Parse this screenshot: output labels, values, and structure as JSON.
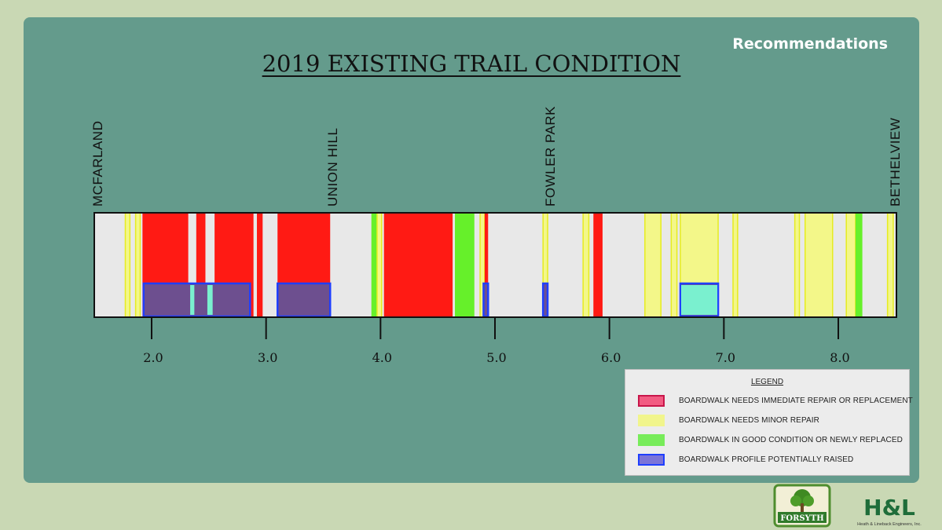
{
  "slide": {
    "section_title": "Recommendations",
    "title": "2019 EXISTING TRAIL CONDITION"
  },
  "chart_data": {
    "type": "strip",
    "x_ticks": [
      "2.0",
      "3.0",
      "4.0",
      "5.0",
      "6.0",
      "7.0",
      "8.0"
    ],
    "tick_values": [
      2.0,
      3.0,
      4.0,
      5.0,
      6.0,
      7.0,
      8.0
    ],
    "xlim": [
      1.5,
      8.5
    ],
    "landmarks": [
      {
        "label": "MCFARLAND",
        "mile": 1.55
      },
      {
        "label": "UNION HILL",
        "mile": 3.6
      },
      {
        "label": "FOWLER PARK",
        "mile": 5.5
      },
      {
        "label": "BETHELVIEW",
        "mile": 8.45
      }
    ],
    "segments": [
      {
        "condition": "minor",
        "start": 1.77,
        "end": 1.81
      },
      {
        "condition": "minor",
        "start": 1.86,
        "end": 1.9
      },
      {
        "condition": "immediate",
        "start": 1.92,
        "end": 2.32
      },
      {
        "condition": "immediate",
        "start": 2.39,
        "end": 2.47
      },
      {
        "condition": "immediate",
        "start": 2.55,
        "end": 2.89
      },
      {
        "condition": "immediate",
        "start": 2.92,
        "end": 2.97
      },
      {
        "condition": "immediate",
        "start": 3.1,
        "end": 3.56
      },
      {
        "condition": "good",
        "start": 3.92,
        "end": 3.97
      },
      {
        "condition": "minor",
        "start": 3.97,
        "end": 4.01
      },
      {
        "condition": "immediate",
        "start": 4.03,
        "end": 4.63
      },
      {
        "condition": "good",
        "start": 4.65,
        "end": 4.82
      },
      {
        "condition": "minor",
        "start": 4.87,
        "end": 4.91
      },
      {
        "condition": "immediate",
        "start": 4.91,
        "end": 4.94
      },
      {
        "condition": "minor",
        "start": 5.42,
        "end": 5.46
      },
      {
        "condition": "minor",
        "start": 5.77,
        "end": 5.82
      },
      {
        "condition": "immediate",
        "start": 5.86,
        "end": 5.94
      },
      {
        "condition": "minor",
        "start": 6.31,
        "end": 6.45
      },
      {
        "condition": "minor",
        "start": 6.54,
        "end": 6.59
      },
      {
        "condition": "minor",
        "start": 6.62,
        "end": 6.95
      },
      {
        "condition": "minor",
        "start": 7.08,
        "end": 7.12
      },
      {
        "condition": "minor",
        "start": 7.62,
        "end": 7.66
      },
      {
        "condition": "minor",
        "start": 7.71,
        "end": 7.95
      },
      {
        "condition": "minor",
        "start": 8.07,
        "end": 8.15
      },
      {
        "condition": "good",
        "start": 8.15,
        "end": 8.21
      },
      {
        "condition": "minor",
        "start": 8.43,
        "end": 8.48
      }
    ],
    "raised": [
      {
        "start": 1.93,
        "end": 2.86
      },
      {
        "start": 3.1,
        "end": 3.56
      },
      {
        "start": 4.9,
        "end": 4.94
      },
      {
        "start": 5.42,
        "end": 5.46
      },
      {
        "start": 6.62,
        "end": 6.95
      }
    ],
    "cyan_gaps": [
      {
        "start": 2.33,
        "end": 2.38
      },
      {
        "start": 2.48,
        "end": 2.54
      },
      {
        "start": 6.62,
        "end": 6.95
      }
    ]
  },
  "legend": {
    "title": "LEGEND",
    "items": [
      {
        "key": "immediate",
        "label": "BOARDWALK NEEDS IMMEDIATE REPAIR OR REPLACEMENT",
        "fill": "#f25c82",
        "border": "#c8164a"
      },
      {
        "key": "minor",
        "label": "BOARDWALK NEEDS MINOR REPAIR",
        "fill": "#f1f58c",
        "border": "#f1f58c"
      },
      {
        "key": "good",
        "label": "BOARDWALK IN GOOD CONDITION OR NEWLY REPLACED",
        "fill": "#78ec5a",
        "border": "#78ec5a"
      },
      {
        "key": "raised",
        "label": "BOARDWALK PROFILE POTENTIALLY RAISED",
        "fill": "#7b74d8",
        "border": "#1f3fff"
      }
    ]
  },
  "colors": {
    "immediate": "#ff1a14",
    "minor": "#f3f789",
    "minor_border": "#e6ec20",
    "good": "#66f02a",
    "raised_fill": "#6d4f8f",
    "raised_border": "#1f3fff",
    "cyan": "#7af0cf",
    "strip_bg": "#e8e8e8"
  },
  "logos": {
    "forsyth": "FORSYTH",
    "hl": "H&L",
    "hl_sub": "Heath & Lineback Engineers, Inc."
  }
}
